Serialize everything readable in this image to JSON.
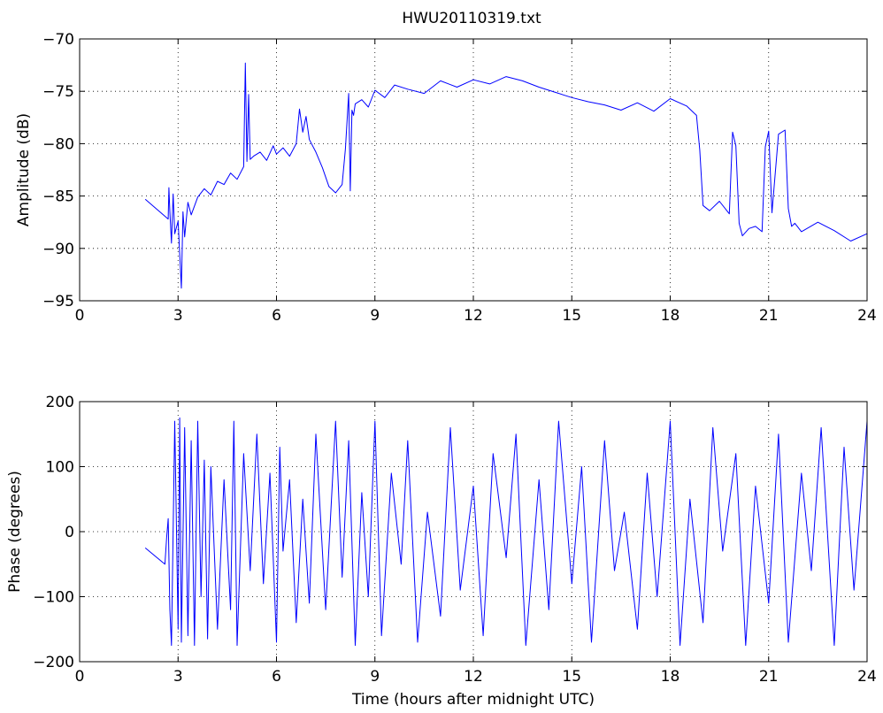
{
  "chart_data": [
    {
      "type": "line",
      "title": "HWU20110319.txt",
      "xlabel": "",
      "ylabel": "Amplitude (dB)",
      "xlim": [
        0,
        24
      ],
      "ylim": [
        -95,
        -70
      ],
      "xticks": [
        "0",
        "3",
        "6",
        "9",
        "12",
        "15",
        "18",
        "21",
        "24"
      ],
      "yticks": [
        "-70",
        "-75",
        "-80",
        "-85",
        "-90",
        "-95"
      ],
      "grid": true,
      "line_color": "#0000ff",
      "series": [
        {
          "x": [
            2.0,
            2.7,
            2.72,
            2.75,
            2.8,
            2.85,
            2.9,
            3.0,
            3.1,
            3.15,
            3.2,
            3.3,
            3.4,
            3.6,
            3.8,
            4.0,
            4.2,
            4.4,
            4.6,
            4.8,
            5.0,
            5.05,
            5.1,
            5.15,
            5.2,
            5.3,
            5.5,
            5.7,
            5.9,
            6.0,
            6.2,
            6.4,
            6.6,
            6.7,
            6.8,
            6.9,
            7.0,
            7.2,
            7.4,
            7.6,
            7.8,
            8.0,
            8.1,
            8.2,
            8.25,
            8.3,
            8.35,
            8.4,
            8.6,
            8.8,
            9.0,
            9.3,
            9.6,
            10.0,
            10.5,
            11.0,
            11.5,
            12.0,
            12.5,
            13.0,
            13.5,
            14.0,
            14.5,
            15.0,
            15.5,
            16.0,
            16.5,
            17.0,
            17.5,
            18.0,
            18.5,
            18.8,
            18.9,
            19.0,
            19.2,
            19.5,
            19.8,
            19.9,
            20.0,
            20.1,
            20.2,
            20.4,
            20.6,
            20.8,
            20.9,
            21.0,
            21.1,
            21.3,
            21.5,
            21.6,
            21.7,
            21.8,
            22.0,
            22.5,
            23.0,
            23.5,
            24.0
          ],
          "y": [
            -85.3,
            -87.2,
            -84.2,
            -86.5,
            -89.5,
            -84.8,
            -88.6,
            -87.4,
            -93.8,
            -86.5,
            -88.9,
            -85.6,
            -86.8,
            -85.1,
            -84.3,
            -84.9,
            -83.6,
            -83.9,
            -82.8,
            -83.4,
            -82.2,
            -72.3,
            -81.7,
            -75.3,
            -81.5,
            -81.2,
            -80.8,
            -81.6,
            -80.2,
            -81.0,
            -80.4,
            -81.2,
            -80.0,
            -76.7,
            -78.9,
            -77.4,
            -79.6,
            -80.8,
            -82.3,
            -84.1,
            -84.7,
            -83.9,
            -80.5,
            -75.2,
            -84.5,
            -76.8,
            -77.3,
            -76.2,
            -75.8,
            -76.5,
            -74.9,
            -75.6,
            -74.4,
            -74.8,
            -75.2,
            -74.0,
            -74.6,
            -73.9,
            -74.3,
            -73.6,
            -74.0,
            -74.6,
            -75.1,
            -75.6,
            -76.0,
            -76.3,
            -76.8,
            -76.1,
            -76.9,
            -75.7,
            -76.4,
            -77.3,
            -80.6,
            -85.9,
            -86.4,
            -85.5,
            -86.7,
            -78.9,
            -80.2,
            -87.6,
            -88.8,
            -88.1,
            -87.9,
            -88.4,
            -80.3,
            -78.8,
            -86.6,
            -79.1,
            -78.7,
            -86.2,
            -87.9,
            -87.6,
            -88.4,
            -87.5,
            -88.3,
            -89.3,
            -88.6
          ]
        }
      ]
    },
    {
      "type": "line",
      "title": "",
      "xlabel": "Time (hours after midnight UTC)",
      "ylabel": "Phase (degrees)",
      "xlim": [
        0,
        24
      ],
      "ylim": [
        -200,
        200
      ],
      "xticks": [
        "0",
        "3",
        "6",
        "9",
        "12",
        "15",
        "18",
        "21",
        "24"
      ],
      "yticks": [
        "200",
        "100",
        "0",
        "-100",
        "-200"
      ],
      "grid": true,
      "line_color": "#0000ff",
      "series": [
        {
          "x": [
            2.0,
            2.6,
            2.65,
            2.7,
            2.75,
            2.8,
            2.9,
            3.0,
            3.05,
            3.1,
            3.2,
            3.3,
            3.4,
            3.5,
            3.6,
            3.7,
            3.8,
            3.9,
            4.0,
            4.2,
            4.4,
            4.6,
            4.7,
            4.8,
            5.0,
            5.2,
            5.4,
            5.6,
            5.8,
            6.0,
            6.1,
            6.2,
            6.4,
            6.6,
            6.8,
            7.0,
            7.2,
            7.5,
            7.8,
            8.0,
            8.2,
            8.4,
            8.6,
            8.8,
            9.0,
            9.2,
            9.5,
            9.8,
            10.0,
            10.3,
            10.6,
            11.0,
            11.3,
            11.6,
            12.0,
            12.3,
            12.6,
            13.0,
            13.3,
            13.6,
            14.0,
            14.3,
            14.6,
            15.0,
            15.3,
            15.6,
            16.0,
            16.3,
            16.6,
            17.0,
            17.3,
            17.6,
            18.0,
            18.3,
            18.6,
            19.0,
            19.3,
            19.6,
            20.0,
            20.3,
            20.6,
            21.0,
            21.3,
            21.6,
            22.0,
            22.3,
            22.6,
            23.0,
            23.3,
            23.6,
            24.0
          ],
          "y": [
            -25,
            -50,
            -10,
            20,
            -120,
            -175,
            170,
            -150,
            175,
            -170,
            160,
            -160,
            140,
            -175,
            170,
            -100,
            110,
            -165,
            100,
            -150,
            80,
            -120,
            170,
            -175,
            120,
            -60,
            150,
            -80,
            90,
            -170,
            130,
            -30,
            80,
            -140,
            50,
            -110,
            150,
            -120,
            170,
            -70,
            140,
            -175,
            60,
            -100,
            170,
            -160,
            90,
            -50,
            140,
            -170,
            30,
            -130,
            160,
            -90,
            70,
            -160,
            120,
            -40,
            150,
            -175,
            80,
            -120,
            170,
            -80,
            100,
            -170,
            140,
            -60,
            30,
            -150,
            90,
            -100,
            170,
            -175,
            50,
            -140,
            160,
            -30,
            120,
            -175,
            70,
            -110,
            150,
            -170,
            90,
            -60,
            160,
            -175,
            130,
            -90,
            170
          ]
        }
      ]
    }
  ]
}
